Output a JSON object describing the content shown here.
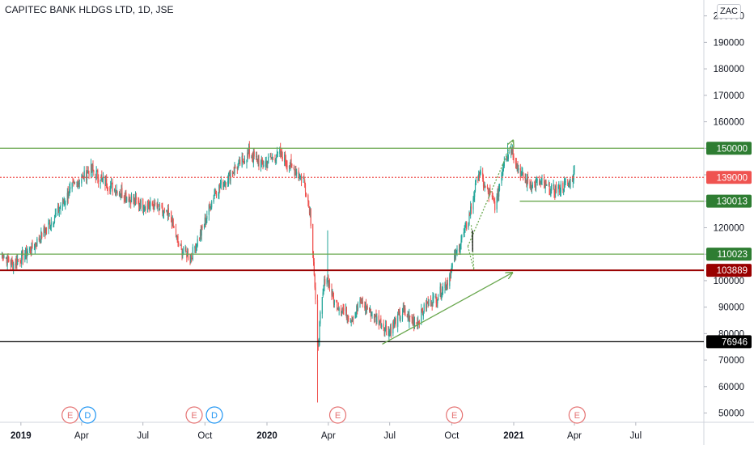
{
  "header": {
    "title": "CAPITEC BANK HLDGS LTD, 1D, JSE",
    "currency": "ZAC"
  },
  "colors": {
    "up": "#26a69a",
    "down": "#ef5350",
    "green_line": "#6aa84f",
    "red_line": "#990000",
    "black_line": "#000000"
  },
  "chart_data": {
    "type": "candlestick",
    "y_ticks": [
      50000,
      60000,
      70000,
      80000,
      90000,
      100000,
      110000,
      120000,
      130000,
      140000,
      150000,
      160000,
      170000,
      180000,
      190000,
      200000
    ],
    "y_tick_labels": [
      "50000",
      "60000",
      "70000",
      "80000",
      "90000",
      "100000",
      "110000",
      "120000",
      "130000",
      "140000",
      "150000",
      "160000",
      "170000",
      "180000",
      "190000",
      "200000"
    ],
    "ylim": [
      46500,
      206000
    ],
    "x_range": [
      "2018-12-01",
      "2021-10-10"
    ],
    "x_ticks": [
      {
        "date": "2019-01-01",
        "label": "2019",
        "bold": true
      },
      {
        "date": "2019-04-01",
        "label": "Apr",
        "bold": false
      },
      {
        "date": "2019-07-01",
        "label": "Jul",
        "bold": false
      },
      {
        "date": "2019-10-01",
        "label": "Oct",
        "bold": false
      },
      {
        "date": "2020-01-01",
        "label": "2020",
        "bold": true
      },
      {
        "date": "2020-04-01",
        "label": "Apr",
        "bold": false
      },
      {
        "date": "2020-07-01",
        "label": "Jul",
        "bold": false
      },
      {
        "date": "2020-10-01",
        "label": "Oct",
        "bold": false
      },
      {
        "date": "2021-01-01",
        "label": "2021",
        "bold": true
      },
      {
        "date": "2021-04-01",
        "label": "Apr",
        "bold": false
      },
      {
        "date": "2021-07-01",
        "label": "Jul",
        "bold": false
      }
    ],
    "price_anchors": [
      [
        "2018-12-01",
        111000
      ],
      [
        "2018-12-20",
        106000
      ],
      [
        "2019-01-20",
        113000
      ],
      [
        "2019-02-20",
        124000
      ],
      [
        "2019-03-20",
        136000
      ],
      [
        "2019-04-15",
        142000
      ],
      [
        "2019-05-05",
        137000
      ],
      [
        "2019-06-01",
        133000
      ],
      [
        "2019-06-25",
        129000
      ],
      [
        "2019-07-20",
        128000
      ],
      [
        "2019-08-10",
        124000
      ],
      [
        "2019-08-25",
        112000
      ],
      [
        "2019-09-10",
        109000
      ],
      [
        "2019-09-25",
        118000
      ],
      [
        "2019-10-15",
        133000
      ],
      [
        "2019-11-10",
        141000
      ],
      [
        "2019-12-05",
        148000
      ],
      [
        "2019-12-25",
        144000
      ],
      [
        "2020-01-20",
        148000
      ],
      [
        "2020-02-10",
        142000
      ],
      [
        "2020-02-25",
        138000
      ],
      [
        "2020-03-05",
        126000
      ],
      [
        "2020-03-10",
        108000
      ],
      [
        "2020-03-16",
        74000
      ],
      [
        "2020-03-20",
        86000
      ],
      [
        "2020-03-28",
        103000
      ],
      [
        "2020-04-10",
        92000
      ],
      [
        "2020-05-05",
        86000
      ],
      [
        "2020-05-20",
        92000
      ],
      [
        "2020-06-10",
        86000
      ],
      [
        "2020-06-30",
        81000
      ],
      [
        "2020-07-20",
        88000
      ],
      [
        "2020-08-10",
        84000
      ],
      [
        "2020-08-25",
        91000
      ],
      [
        "2020-09-10",
        94000
      ],
      [
        "2020-09-25",
        100000
      ],
      [
        "2020-10-10",
        112000
      ],
      [
        "2020-10-25",
        122000
      ],
      [
        "2020-11-10",
        141000
      ],
      [
        "2020-11-20",
        135000
      ],
      [
        "2020-12-05",
        128000
      ],
      [
        "2020-12-18",
        146000
      ],
      [
        "2020-12-28",
        150000
      ],
      [
        "2021-01-10",
        141000
      ],
      [
        "2021-01-25",
        136000
      ],
      [
        "2021-02-10",
        137000
      ],
      [
        "2021-02-25",
        134000
      ],
      [
        "2021-03-10",
        135000
      ],
      [
        "2021-03-25",
        137000
      ],
      [
        "2021-04-01",
        141000
      ]
    ],
    "wicks": [
      {
        "date": "2020-03-16",
        "low": 54000
      },
      {
        "date": "2020-03-31",
        "high": 119000
      },
      {
        "date": "2020-12-23",
        "high": 152000
      }
    ],
    "hlines": [
      {
        "value": 150000,
        "label": "150000",
        "color": "#6aa84f",
        "start": "2018-12-01",
        "badge": "#2e7d32"
      },
      {
        "value": 139000,
        "label": "139000",
        "color": "#ef5350",
        "start": "2018-12-01",
        "dotted": true,
        "badge": "#ef5350"
      },
      {
        "value": 130013,
        "label": "130013",
        "color": "#6aa84f",
        "start": "2021-01-10",
        "badge": "#2e7d32"
      },
      {
        "value": 110023,
        "label": "110023",
        "color": "#6aa84f",
        "start": "2018-12-01",
        "badge": "#2e7d32"
      },
      {
        "value": 103889,
        "label": "103889",
        "color": "#990000",
        "start": "2018-12-01",
        "badge": "#990000"
      },
      {
        "value": 76946,
        "label": "76946",
        "color": "#000000",
        "start": "2018-12-01",
        "badge": "#000000"
      }
    ],
    "trendlines": [
      {
        "from": [
          "2020-06-20",
          76000
        ],
        "to": [
          "2020-12-30",
          103000
        ],
        "color": "#6aa84f",
        "arrow": true
      },
      {
        "from": [
          "2020-10-25",
          113000
        ],
        "to": [
          "2020-12-31",
          153000
        ],
        "color": "#6aa84f",
        "dotted": true,
        "arrow": true
      }
    ],
    "events": [
      {
        "date": "2019-03-15",
        "label": "E",
        "kind": "earnings"
      },
      {
        "date": "2019-04-10",
        "label": "D",
        "kind": "dividend"
      },
      {
        "date": "2019-09-15",
        "label": "E",
        "kind": "earnings"
      },
      {
        "date": "2019-10-15",
        "label": "D",
        "kind": "dividend"
      },
      {
        "date": "2020-04-15",
        "label": "E",
        "kind": "earnings"
      },
      {
        "date": "2020-10-05",
        "label": "E",
        "kind": "earnings"
      },
      {
        "date": "2021-04-05",
        "label": "E",
        "kind": "earnings"
      }
    ]
  }
}
